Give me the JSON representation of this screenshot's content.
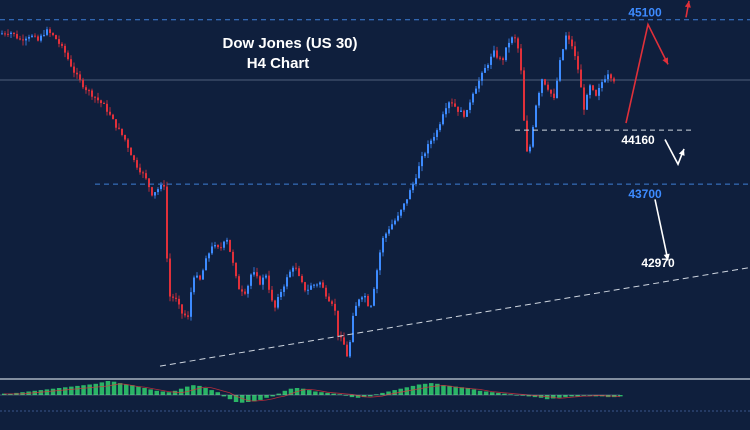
{
  "chart_data": {
    "type": "candlestick",
    "title": "Dow Jones (US 30)",
    "subtitle": "H4 Chart",
    "colors": {
      "background": "#0f1f3d",
      "bull": "#3d8bff",
      "bear": "#e0303a",
      "level_line": "#3d7fd6",
      "level_label_blue": "#3d8bff",
      "level_label_white": "#ffffff",
      "trendline": "#cfd6e0",
      "arrow_red": "#e0303a",
      "arrow_white": "#ffffff",
      "histogram": "#2ec46a"
    },
    "levels": [
      {
        "name": "45100",
        "value": 45100,
        "label": "45100",
        "style": "dashed-blue"
      },
      {
        "name": "44160",
        "value": 44160,
        "label": "44160",
        "style": "dashed-white"
      },
      {
        "name": "43700",
        "value": 43700,
        "label": "43700",
        "style": "dashed-blue"
      },
      {
        "name": "42970",
        "value": 42970,
        "label": "42970",
        "style": "label-only"
      }
    ],
    "price_path": [
      [
        0,
        44980
      ],
      [
        10,
        45000
      ],
      [
        20,
        44930
      ],
      [
        30,
        44970
      ],
      [
        38,
        44920
      ],
      [
        46,
        45010
      ],
      [
        55,
        44950
      ],
      [
        65,
        44820
      ],
      [
        75,
        44640
      ],
      [
        85,
        44520
      ],
      [
        95,
        44440
      ],
      [
        105,
        44360
      ],
      [
        115,
        44210
      ],
      [
        125,
        44080
      ],
      [
        135,
        43880
      ],
      [
        145,
        43760
      ],
      [
        152,
        43620
      ],
      [
        158,
        43660
      ],
      [
        165,
        43700
      ],
      [
        168,
        42750
      ],
      [
        175,
        42730
      ],
      [
        182,
        42600
      ],
      [
        188,
        42560
      ],
      [
        193,
        42930
      ],
      [
        200,
        42880
      ],
      [
        206,
        43050
      ],
      [
        212,
        43180
      ],
      [
        220,
        43140
      ],
      [
        226,
        43270
      ],
      [
        232,
        43060
      ],
      [
        238,
        42820
      ],
      [
        246,
        42780
      ],
      [
        252,
        42960
      ],
      [
        260,
        42860
      ],
      [
        266,
        42930
      ],
      [
        274,
        42620
      ],
      [
        280,
        42770
      ],
      [
        286,
        42880
      ],
      [
        294,
        43020
      ],
      [
        300,
        42880
      ],
      [
        306,
        42790
      ],
      [
        312,
        42840
      ],
      [
        320,
        42860
      ],
      [
        328,
        42730
      ],
      [
        334,
        42680
      ],
      [
        338,
        42420
      ],
      [
        344,
        42330
      ],
      [
        348,
        42210
      ],
      [
        353,
        42560
      ],
      [
        358,
        42720
      ],
      [
        364,
        42770
      ],
      [
        370,
        42630
      ],
      [
        376,
        42920
      ],
      [
        382,
        43220
      ],
      [
        390,
        43340
      ],
      [
        398,
        43420
      ],
      [
        406,
        43560
      ],
      [
        414,
        43720
      ],
      [
        422,
        43920
      ],
      [
        430,
        44060
      ],
      [
        438,
        44170
      ],
      [
        444,
        44340
      ],
      [
        450,
        44420
      ],
      [
        458,
        44330
      ],
      [
        466,
        44280
      ],
      [
        472,
        44470
      ],
      [
        478,
        44560
      ],
      [
        486,
        44700
      ],
      [
        494,
        44820
      ],
      [
        502,
        44740
      ],
      [
        508,
        44900
      ],
      [
        514,
        44960
      ],
      [
        520,
        44800
      ],
      [
        526,
        43950
      ],
      [
        530,
        44020
      ],
      [
        536,
        44380
      ],
      [
        542,
        44600
      ],
      [
        548,
        44520
      ],
      [
        554,
        44420
      ],
      [
        560,
        44740
      ],
      [
        566,
        44960
      ],
      [
        572,
        44880
      ],
      [
        578,
        44680
      ],
      [
        584,
        44350
      ],
      [
        590,
        44530
      ],
      [
        596,
        44440
      ],
      [
        602,
        44570
      ],
      [
        608,
        44650
      ],
      [
        615,
        44580
      ]
    ],
    "arrows": [
      {
        "name": "projection-up",
        "color": "red",
        "from": [
          626,
          44220
        ],
        "via": [
          648,
          45060
        ],
        "to": [
          668,
          44720
        ]
      },
      {
        "name": "projection-top",
        "color": "red",
        "from": [
          686,
          45120
        ],
        "to": [
          689,
          45260
        ]
      },
      {
        "name": "projection-pullback",
        "color": "white",
        "from": [
          665,
          44080
        ],
        "via": [
          678,
          43870
        ],
        "to": [
          684,
          44000
        ]
      },
      {
        "name": "projection-down",
        "color": "white",
        "from": [
          655,
          43570
        ],
        "to": [
          668,
          43050
        ]
      }
    ],
    "trendline": {
      "from": [
        160,
        42150
      ],
      "to": [
        750,
        42990
      ]
    },
    "oscillator": {
      "type": "histogram",
      "color": "#2ec46a",
      "values": [
        0.1,
        0.1,
        0.15,
        0.2,
        0.25,
        0.3,
        0.35,
        0.4,
        0.45,
        0.5,
        0.55,
        0.6,
        0.65,
        0.7,
        0.75,
        0.8,
        0.9,
        1.0,
        0.95,
        0.85,
        0.75,
        0.7,
        0.6,
        0.5,
        0.4,
        0.3,
        0.25,
        0.2,
        0.3,
        0.45,
        0.6,
        0.7,
        0.65,
        0.5,
        0.35,
        0.2,
        -0.1,
        -0.3,
        -0.5,
        -0.55,
        -0.5,
        -0.45,
        -0.35,
        -0.2,
        -0.1,
        0.1,
        0.3,
        0.45,
        0.5,
        0.45,
        0.35,
        0.25,
        0.2,
        0.15,
        0.1,
        0.05,
        -0.05,
        -0.15,
        -0.2,
        -0.15,
        -0.1,
        0.05,
        0.15,
        0.25,
        0.35,
        0.45,
        0.55,
        0.65,
        0.75,
        0.8,
        0.85,
        0.8,
        0.7,
        0.65,
        0.6,
        0.55,
        0.5,
        0.4,
        0.3,
        0.25,
        0.2,
        0.15,
        0.1,
        0.05,
        0.0,
        -0.05,
        -0.1,
        -0.15,
        -0.2,
        -0.3,
        -0.25,
        -0.2,
        -0.15,
        -0.1,
        -0.1,
        -0.05,
        -0.05,
        -0.1,
        -0.1,
        -0.15,
        -0.15,
        -0.1
      ]
    }
  }
}
